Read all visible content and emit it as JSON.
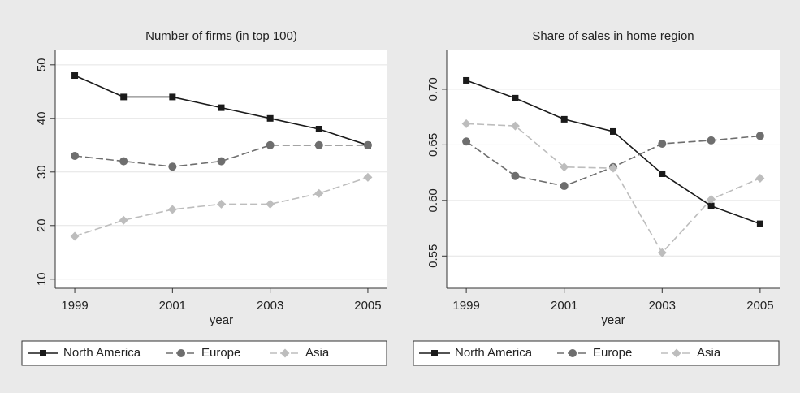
{
  "chart_data": [
    {
      "type": "line",
      "title": "Number of firms (in top 100)",
      "x_label": "year",
      "x": [
        1999,
        2000,
        2001,
        2002,
        2003,
        2004,
        2005
      ],
      "xlim": [
        1998.6,
        2005.4
      ],
      "xticks": [
        1999,
        2001,
        2003,
        2005
      ],
      "ylim": [
        8.3,
        52.7
      ],
      "yticks": [
        10,
        20,
        30,
        40,
        50
      ],
      "grid": true,
      "series": [
        {
          "name": "North America",
          "color": "#1a1a1a",
          "marker": "square",
          "dash": false,
          "values": [
            48,
            44,
            44,
            42,
            40,
            38,
            35
          ]
        },
        {
          "name": "Europe",
          "color": "#6e6e6e",
          "marker": "circle",
          "dash": true,
          "values": [
            33,
            32,
            31,
            32,
            35,
            35,
            35
          ]
        },
        {
          "name": "Asia",
          "color": "#bdbdbd",
          "marker": "diamond",
          "dash": true,
          "values": [
            18,
            21,
            23,
            24,
            24,
            26,
            29
          ]
        }
      ]
    },
    {
      "type": "line",
      "title": "Share of sales in home region",
      "x_label": "year",
      "x": [
        1999,
        2000,
        2001,
        2002,
        2003,
        2004,
        2005
      ],
      "xlim": [
        1998.6,
        2005.4
      ],
      "xticks": [
        1999,
        2001,
        2003,
        2005
      ],
      "ylim": [
        0.521,
        0.735
      ],
      "yticks": [
        0.55,
        {
          "value": 0.6,
          "label": "0.60"
        },
        0.65,
        {
          "value": 0.7,
          "label": "0.70"
        }
      ],
      "grid": true,
      "series": [
        {
          "name": "North America",
          "color": "#1a1a1a",
          "marker": "square",
          "dash": false,
          "values": [
            0.708,
            0.692,
            0.673,
            0.662,
            0.624,
            0.595,
            0.579
          ]
        },
        {
          "name": "Europe",
          "color": "#6e6e6e",
          "marker": "circle",
          "dash": true,
          "values": [
            0.653,
            0.622,
            0.613,
            0.63,
            0.651,
            0.654,
            0.658
          ]
        },
        {
          "name": "Asia",
          "color": "#bdbdbd",
          "marker": "diamond",
          "dash": true,
          "values": [
            0.669,
            0.667,
            0.63,
            0.629,
            0.553,
            0.601,
            0.62
          ]
        }
      ]
    }
  ]
}
